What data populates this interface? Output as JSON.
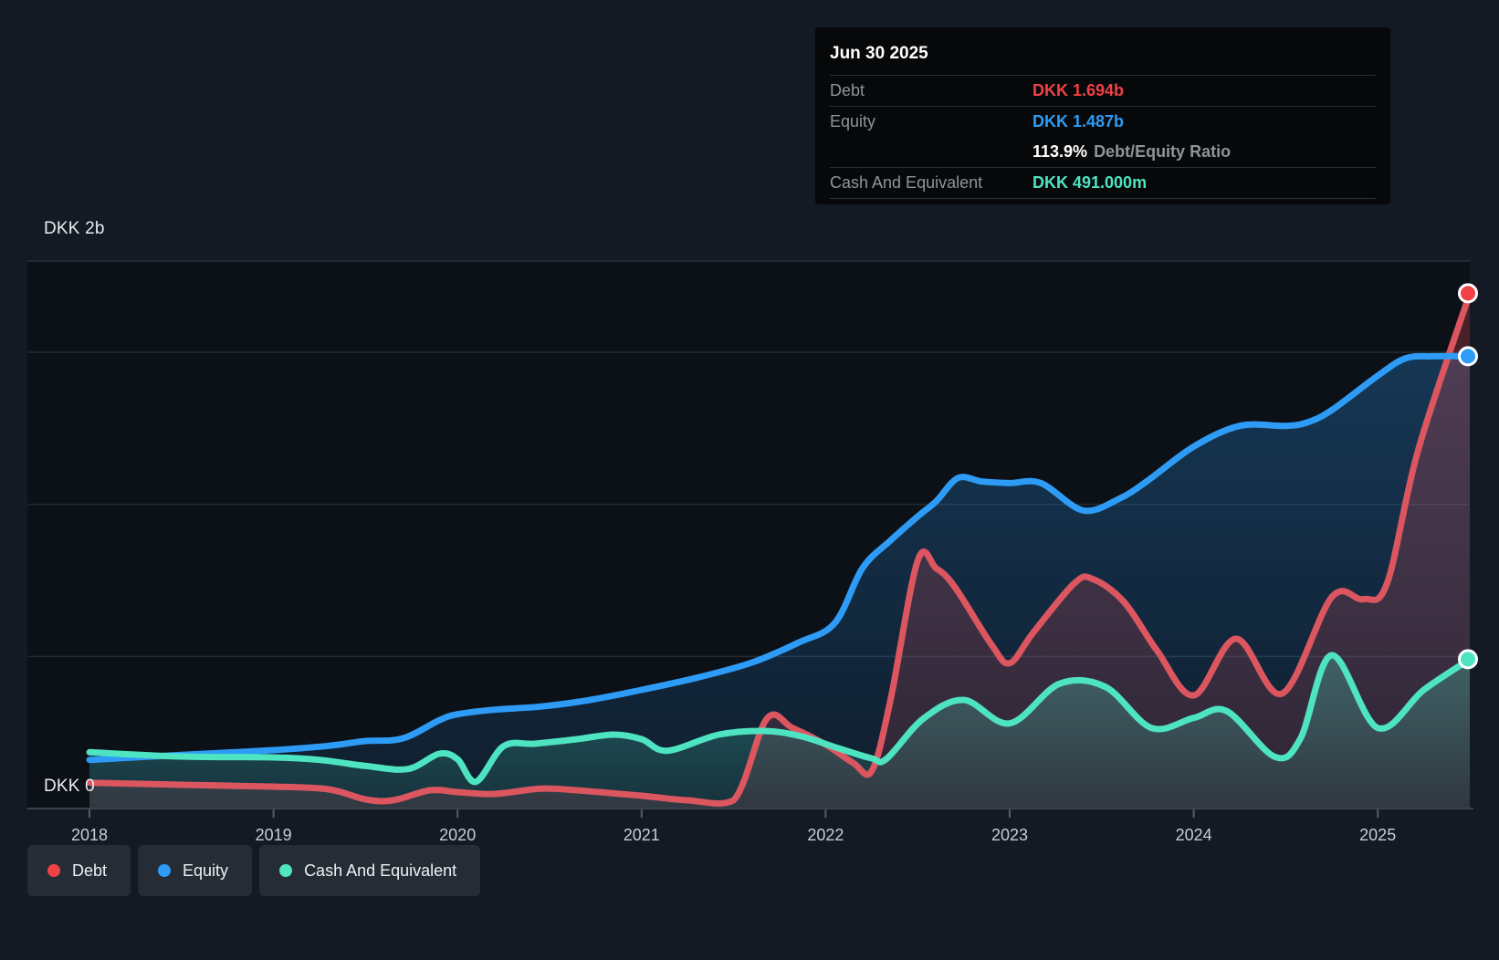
{
  "y_axis": {
    "max_label": "DKK 2b",
    "min_label": "DKK 0"
  },
  "tooltip": {
    "title": "Jun 30 2025",
    "debt": {
      "label": "Debt",
      "value": "DKK 1.694b",
      "color": "#ef4146"
    },
    "equity": {
      "label": "Equity",
      "value": "DKK 1.487b",
      "color": "#2e9cf6"
    },
    "ratio": {
      "value": "113.9%",
      "label": "Debt/Equity Ratio"
    },
    "cash": {
      "label": "Cash And Equivalent",
      "value": "DKK 491.000m",
      "color": "#4ee4c2"
    }
  },
  "legend": {
    "debt": {
      "label": "Debt",
      "color": "#ef4146"
    },
    "equity": {
      "label": "Equity",
      "color": "#2e9cf6"
    },
    "cash": {
      "label": "Cash And Equivalent",
      "color": "#4ee4c2"
    }
  },
  "chart_data": {
    "type": "area",
    "title": "Debt to Equity history",
    "unit": "DKK billions",
    "ylim": [
      0,
      2
    ],
    "grid_values": [
      1.5,
      1.0,
      0.5
    ],
    "x_ticks": [
      2018,
      2019,
      2020,
      2021,
      2022,
      2023,
      2024,
      2025
    ],
    "x_range": [
      2018,
      2025.5
    ],
    "tooltip_date": "Jun 30 2025",
    "series": [
      {
        "name": "Debt",
        "line_color": "#dc5660",
        "accent_color": "#ef4146",
        "points": [
          [
            2018.0,
            0.085
          ],
          [
            2018.5,
            0.078
          ],
          [
            2019.0,
            0.072
          ],
          [
            2019.3,
            0.063
          ],
          [
            2019.5,
            0.03
          ],
          [
            2019.65,
            0.027
          ],
          [
            2019.85,
            0.06
          ],
          [
            2020.0,
            0.054
          ],
          [
            2020.2,
            0.048
          ],
          [
            2020.45,
            0.065
          ],
          [
            2020.65,
            0.06
          ],
          [
            2021.0,
            0.042
          ],
          [
            2021.25,
            0.027
          ],
          [
            2021.5,
            0.027
          ],
          [
            2021.68,
            0.295
          ],
          [
            2021.82,
            0.265
          ],
          [
            2022.0,
            0.21
          ],
          [
            2022.15,
            0.15
          ],
          [
            2022.25,
            0.123
          ],
          [
            2022.35,
            0.35
          ],
          [
            2022.5,
            0.815
          ],
          [
            2022.6,
            0.79
          ],
          [
            2022.7,
            0.73
          ],
          [
            2022.9,
            0.54
          ],
          [
            2023.0,
            0.478
          ],
          [
            2023.13,
            0.58
          ],
          [
            2023.35,
            0.74
          ],
          [
            2023.45,
            0.755
          ],
          [
            2023.62,
            0.68
          ],
          [
            2023.8,
            0.52
          ],
          [
            2024.0,
            0.372
          ],
          [
            2024.23,
            0.558
          ],
          [
            2024.48,
            0.378
          ],
          [
            2024.75,
            0.695
          ],
          [
            2024.92,
            0.688
          ],
          [
            2025.05,
            0.74
          ],
          [
            2025.22,
            1.18
          ],
          [
            2025.5,
            1.694
          ]
        ]
      },
      {
        "name": "Equity",
        "line_color": "#2e9cf6",
        "accent_color": "#2e9cf6",
        "points": [
          [
            2018.0,
            0.16
          ],
          [
            2018.5,
            0.176
          ],
          [
            2019.0,
            0.192
          ],
          [
            2019.3,
            0.206
          ],
          [
            2019.5,
            0.222
          ],
          [
            2019.7,
            0.23
          ],
          [
            2019.9,
            0.29
          ],
          [
            2020.0,
            0.31
          ],
          [
            2020.2,
            0.325
          ],
          [
            2020.45,
            0.335
          ],
          [
            2020.7,
            0.355
          ],
          [
            2021.0,
            0.39
          ],
          [
            2021.3,
            0.43
          ],
          [
            2021.6,
            0.48
          ],
          [
            2021.85,
            0.545
          ],
          [
            2022.05,
            0.61
          ],
          [
            2022.2,
            0.79
          ],
          [
            2022.35,
            0.88
          ],
          [
            2022.5,
            0.96
          ],
          [
            2022.6,
            1.01
          ],
          [
            2022.72,
            1.087
          ],
          [
            2022.85,
            1.075
          ],
          [
            2023.0,
            1.07
          ],
          [
            2023.17,
            1.07
          ],
          [
            2023.4,
            0.98
          ],
          [
            2023.6,
            1.02
          ],
          [
            2023.75,
            1.078
          ],
          [
            2024.0,
            1.19
          ],
          [
            2024.25,
            1.258
          ],
          [
            2024.5,
            1.258
          ],
          [
            2024.62,
            1.27
          ],
          [
            2024.75,
            1.31
          ],
          [
            2025.0,
            1.423
          ],
          [
            2025.15,
            1.48
          ],
          [
            2025.3,
            1.487
          ],
          [
            2025.5,
            1.487
          ]
        ]
      },
      {
        "name": "Cash And Equivalent",
        "line_color": "#4ee4c2",
        "accent_color": "#4ee4c2",
        "points": [
          [
            2018.0,
            0.185
          ],
          [
            2018.5,
            0.171
          ],
          [
            2019.0,
            0.168
          ],
          [
            2019.25,
            0.16
          ],
          [
            2019.5,
            0.14
          ],
          [
            2019.73,
            0.13
          ],
          [
            2019.9,
            0.18
          ],
          [
            2020.0,
            0.162
          ],
          [
            2020.1,
            0.088
          ],
          [
            2020.25,
            0.205
          ],
          [
            2020.42,
            0.213
          ],
          [
            2020.65,
            0.228
          ],
          [
            2020.85,
            0.243
          ],
          [
            2021.0,
            0.228
          ],
          [
            2021.14,
            0.19
          ],
          [
            2021.42,
            0.243
          ],
          [
            2021.67,
            0.255
          ],
          [
            2021.87,
            0.237
          ],
          [
            2022.07,
            0.198
          ],
          [
            2022.25,
            0.165
          ],
          [
            2022.33,
            0.163
          ],
          [
            2022.53,
            0.295
          ],
          [
            2022.75,
            0.357
          ],
          [
            2023.0,
            0.28
          ],
          [
            2023.27,
            0.41
          ],
          [
            2023.52,
            0.4
          ],
          [
            2023.77,
            0.265
          ],
          [
            2024.0,
            0.298
          ],
          [
            2024.18,
            0.32
          ],
          [
            2024.44,
            0.17
          ],
          [
            2024.58,
            0.23
          ],
          [
            2024.75,
            0.504
          ],
          [
            2025.0,
            0.265
          ],
          [
            2025.25,
            0.39
          ],
          [
            2025.5,
            0.491
          ]
        ]
      }
    ]
  }
}
